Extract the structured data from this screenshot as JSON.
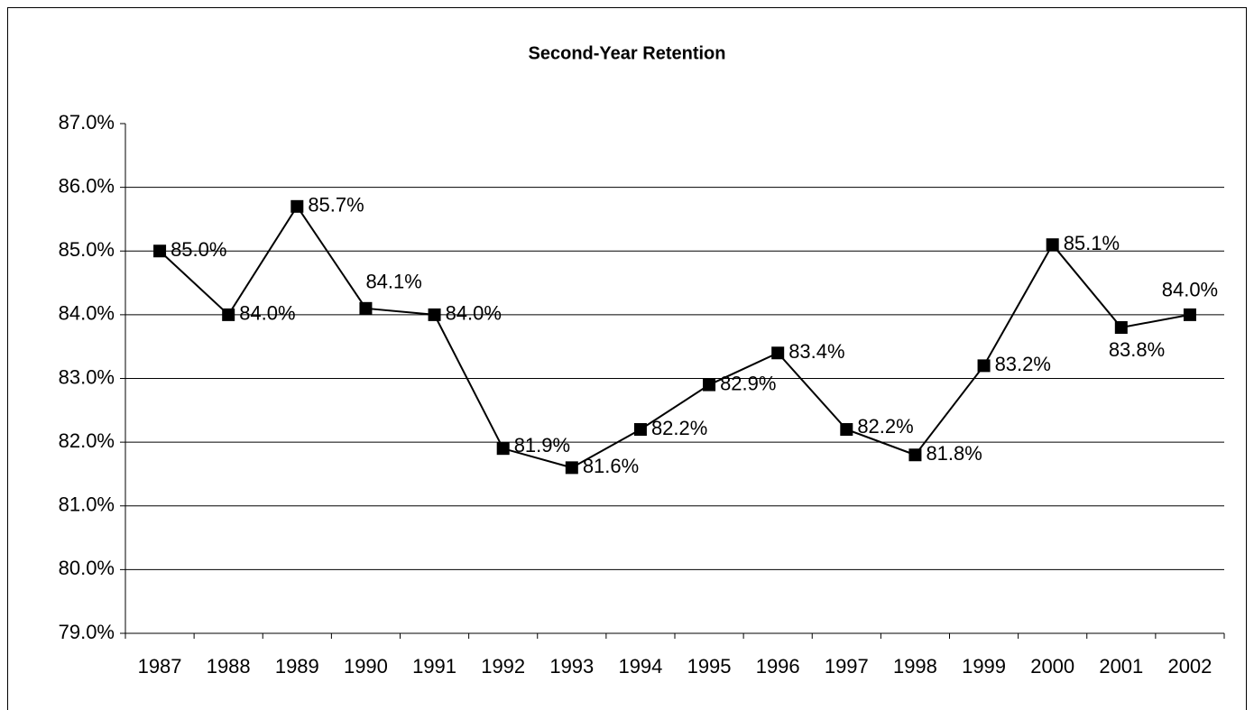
{
  "chart_data": {
    "type": "line",
    "title": "Second-Year Retention",
    "categories": [
      "1987",
      "1988",
      "1989",
      "1990",
      "1991",
      "1992",
      "1993",
      "1994",
      "1995",
      "1996",
      "1997",
      "1998",
      "1999",
      "2000",
      "2001",
      "2002"
    ],
    "values": [
      85.0,
      84.0,
      85.7,
      84.1,
      84.0,
      81.9,
      81.6,
      82.2,
      82.9,
      83.4,
      82.2,
      81.8,
      83.2,
      85.1,
      83.8,
      84.0
    ],
    "value_labels": [
      "85.0%",
      "84.0%",
      "85.7%",
      "84.1%",
      "84.0%",
      "81.9%",
      "81.6%",
      "82.2%",
      "82.9%",
      "83.4%",
      "82.2%",
      "81.8%",
      "83.2%",
      "85.1%",
      "83.8%",
      "84.0%"
    ],
    "color": "#000000",
    "ylim": [
      79,
      87
    ],
    "yticks": [
      {
        "value": 79,
        "label": "79.0%"
      },
      {
        "value": 80,
        "label": "80.0%"
      },
      {
        "value": 81,
        "label": "81.0%"
      },
      {
        "value": 82,
        "label": "82.0%"
      },
      {
        "value": 83,
        "label": "83.0%"
      },
      {
        "value": 84,
        "label": "84.0%"
      },
      {
        "value": 85,
        "label": "85.0%"
      },
      {
        "value": 86,
        "label": "86.0%"
      },
      {
        "value": 87,
        "label": "87.0%"
      }
    ],
    "grid": true
  }
}
